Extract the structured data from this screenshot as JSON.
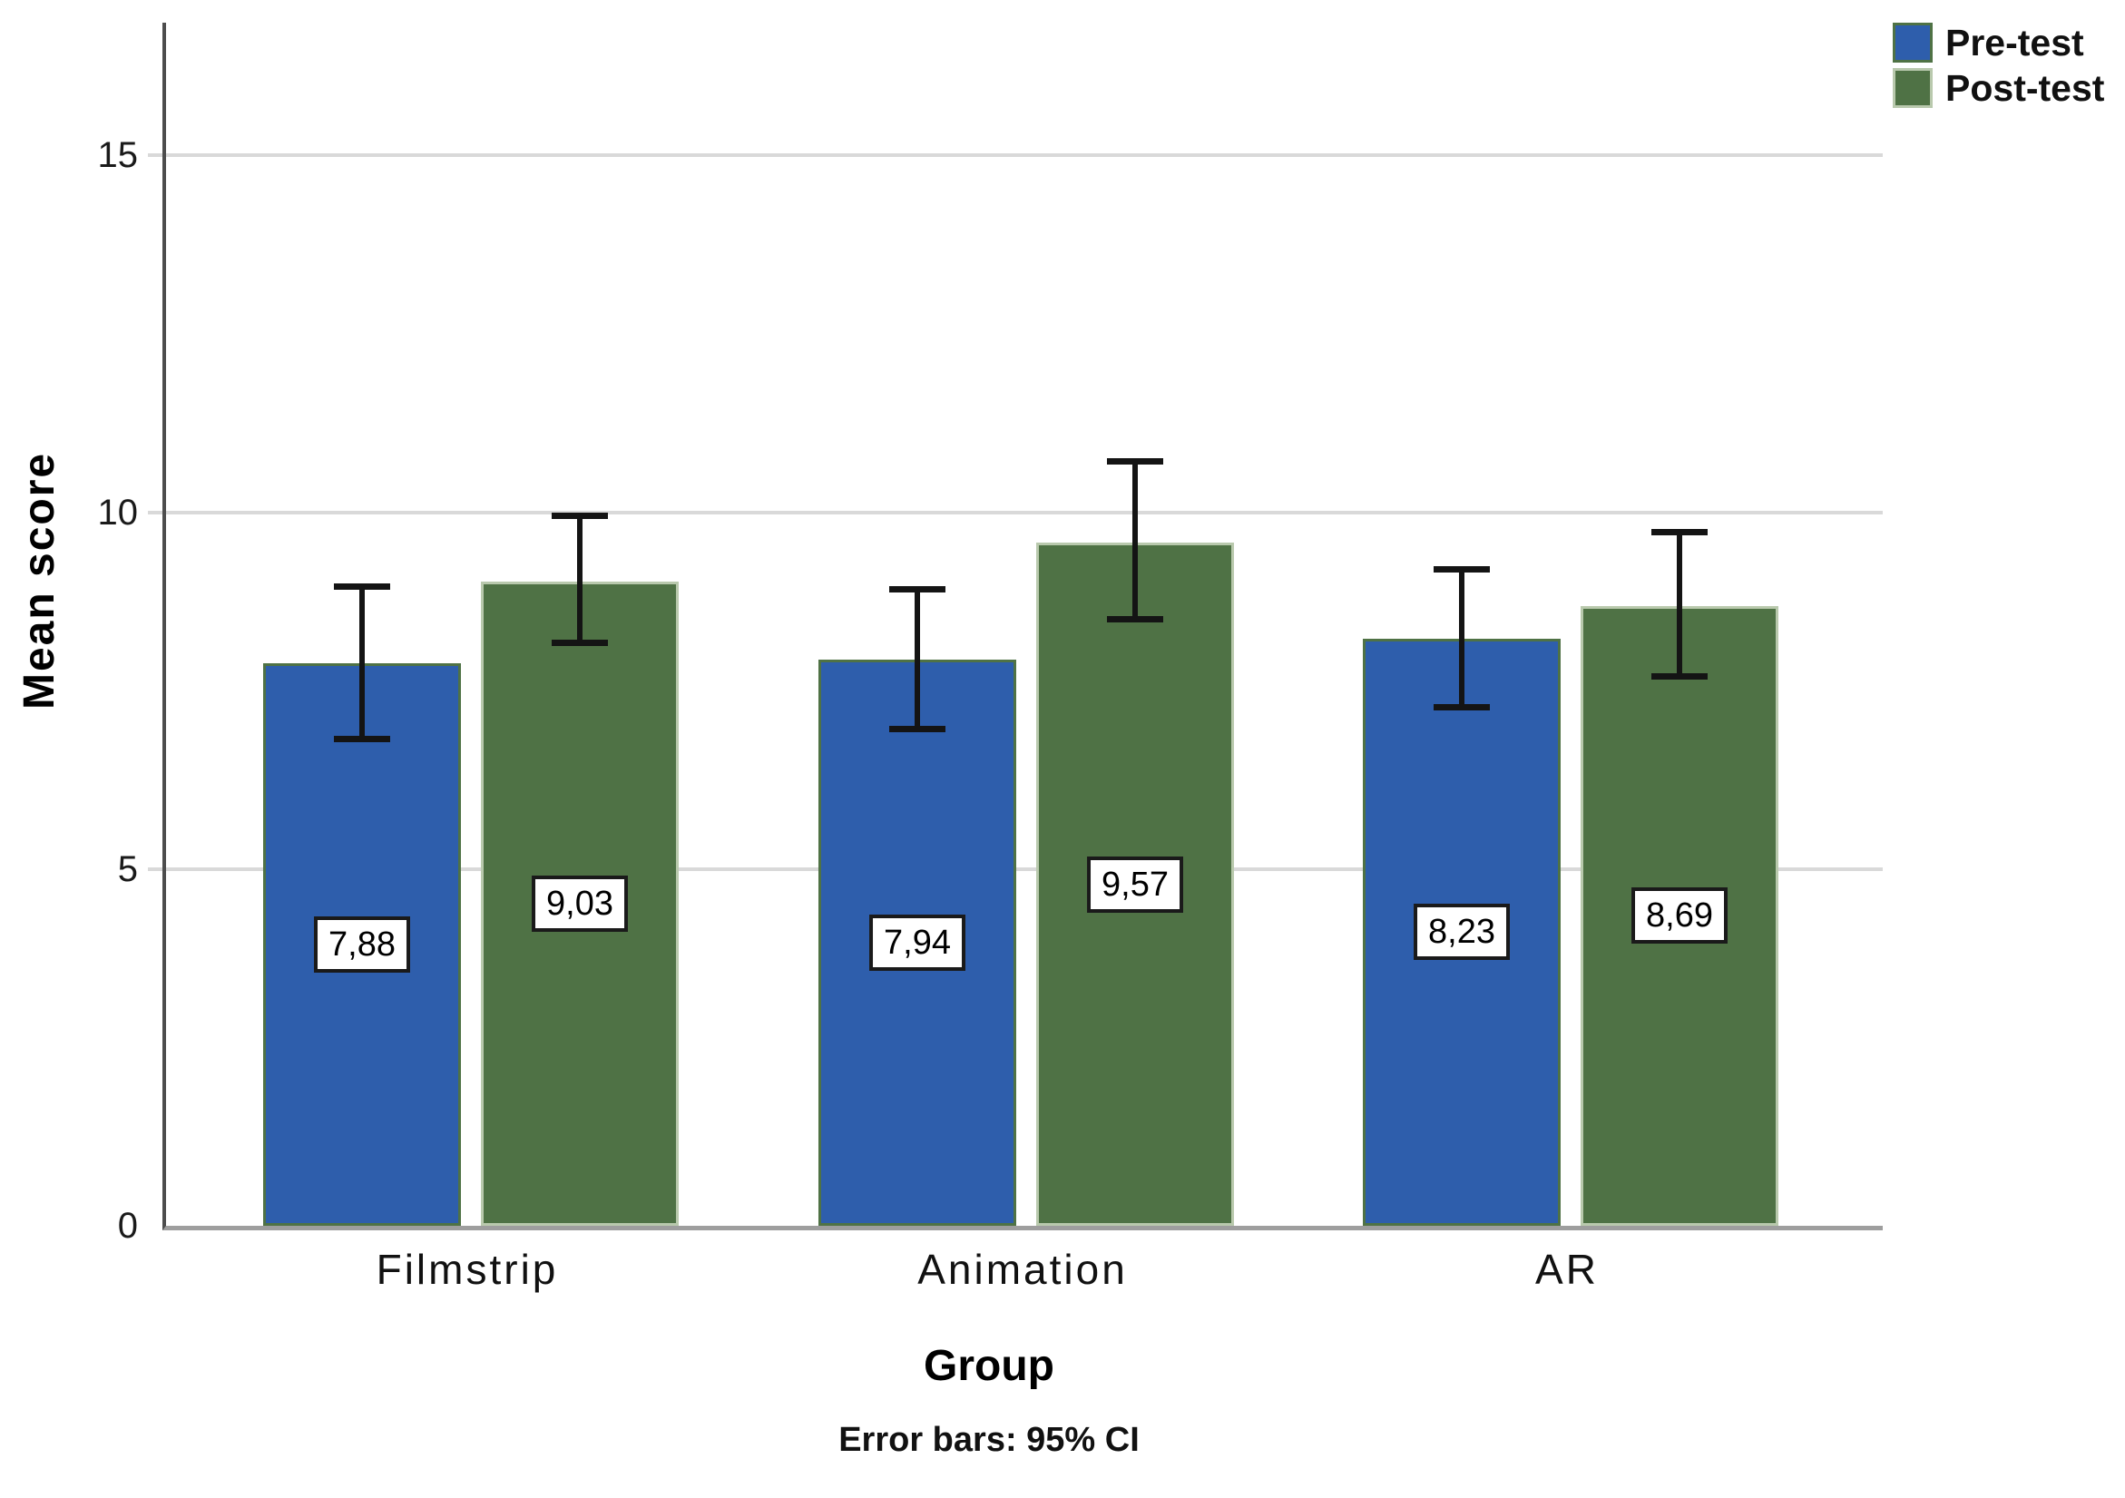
{
  "chart_data": {
    "type": "bar",
    "title": "",
    "xlabel": "Group",
    "ylabel": "Mean score",
    "footnote": "Error bars: 95% CI",
    "categories": [
      "Filmstrip",
      "Animation",
      "AR"
    ],
    "series": [
      {
        "name": "Pre-test",
        "color": "#2e5eac",
        "border_color": "#4f7245",
        "values": [
          7.88,
          7.94,
          8.23
        ],
        "value_labels": [
          "7,88",
          "7,94",
          "8,23"
        ],
        "ci_low": [
          6.78,
          6.92,
          7.22
        ],
        "ci_high": [
          9.0,
          8.97,
          9.25
        ]
      },
      {
        "name": "Post-test",
        "color": "#4f7245",
        "border_color": "#b9c9ad",
        "values": [
          9.03,
          9.57,
          8.69
        ],
        "value_labels": [
          "9,03",
          "9,57",
          "8,69"
        ],
        "ci_low": [
          8.12,
          8.46,
          7.65
        ],
        "ci_high": [
          10.0,
          10.76,
          9.77
        ]
      }
    ],
    "y_ticks": [
      0,
      5,
      10,
      15
    ],
    "ylim": [
      0,
      16.86
    ],
    "grid": "horizontal-only",
    "legend_position": "top-right",
    "colors": {
      "gridline": "#d9d9d9",
      "y_axis_line": "#4d4d4d",
      "baseline": "#9e9e9e",
      "error_bar": "#141414",
      "value_label_bg": "#ffffff",
      "value_label_border": "#1a1a1a"
    }
  }
}
